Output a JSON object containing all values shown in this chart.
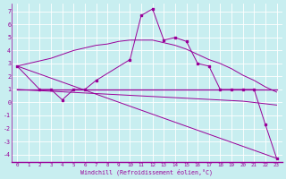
{
  "xlabel": "Windchill (Refroidissement éolien,°C)",
  "background_color": "#c8eef0",
  "line_color": "#990099",
  "xlim": [
    -0.5,
    23.5
  ],
  "ylim": [
    -4.6,
    7.6
  ],
  "yticks": [
    -4,
    -3,
    -2,
    -1,
    0,
    1,
    2,
    3,
    4,
    5,
    6,
    7
  ],
  "xticks": [
    0,
    1,
    2,
    3,
    4,
    5,
    6,
    7,
    8,
    9,
    10,
    11,
    12,
    13,
    14,
    15,
    16,
    17,
    18,
    19,
    20,
    21,
    22,
    23
  ],
  "line1_x": [
    0,
    2,
    3,
    4,
    5,
    6,
    7,
    10,
    11,
    12,
    13,
    14,
    15,
    16,
    17,
    18,
    19,
    20,
    21,
    22,
    23
  ],
  "line1_y": [
    2.8,
    1.0,
    1.0,
    0.2,
    1.0,
    1.0,
    1.7,
    3.3,
    6.7,
    7.2,
    4.8,
    5.0,
    4.7,
    3.0,
    2.8,
    1.0,
    1.0,
    1.0,
    1.0,
    -1.7,
    -4.3
  ],
  "line2_x": [
    0,
    2,
    3,
    4,
    5,
    6,
    7,
    8,
    9,
    10,
    11,
    12,
    13,
    14,
    15,
    16,
    17,
    18,
    19,
    20,
    21,
    22,
    23
  ],
  "line2_y": [
    2.8,
    3.2,
    3.4,
    3.7,
    4.0,
    4.2,
    4.4,
    4.5,
    4.7,
    4.8,
    4.8,
    4.8,
    4.6,
    4.4,
    4.1,
    3.7,
    3.3,
    3.0,
    2.6,
    2.1,
    1.7,
    1.2,
    0.8
  ],
  "line3_x": [
    0,
    23
  ],
  "line3_y": [
    1.0,
    1.0
  ],
  "line4_x": [
    0,
    20,
    23
  ],
  "line4_y": [
    1.0,
    0.1,
    -0.2
  ],
  "line5_x": [
    0,
    23
  ],
  "line5_y": [
    2.8,
    -4.3
  ]
}
